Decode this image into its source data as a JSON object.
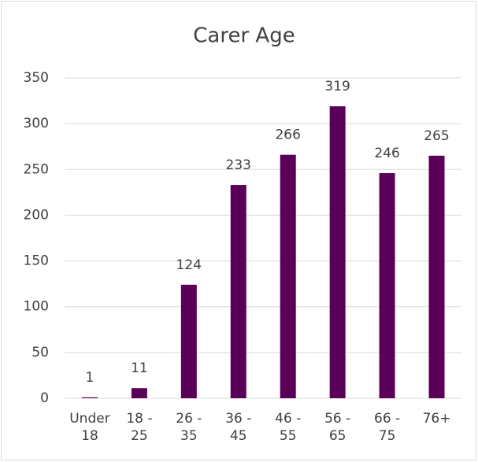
{
  "chart_data": {
    "type": "bar",
    "title": "Carer Age",
    "categories": [
      "Under 18",
      "18 - 25",
      "26 - 35",
      "36 - 45",
      "46 - 55",
      "56 - 65",
      "66 - 75",
      "76+"
    ],
    "values": [
      1,
      11,
      124,
      233,
      266,
      319,
      246,
      265
    ],
    "color": "#5a0058",
    "ylim": [
      0,
      350
    ],
    "yticks": [
      0,
      50,
      100,
      150,
      200,
      250,
      300,
      350
    ],
    "grid": true
  }
}
